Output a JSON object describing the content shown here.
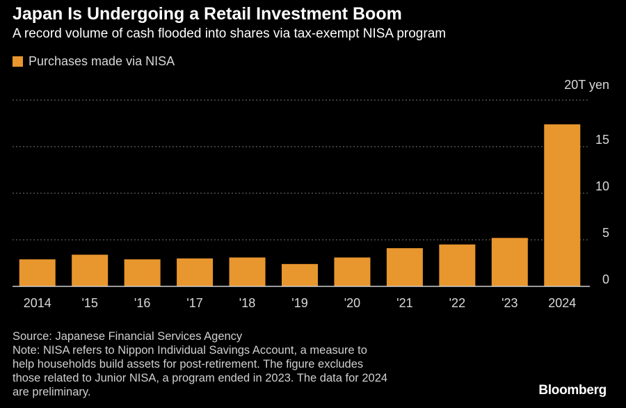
{
  "header": {
    "title": "Japan Is Undergoing a Retail Investment Boom",
    "subtitle": "A record volume of cash flooded into shares via tax-exempt NISA program"
  },
  "legend": {
    "label": "Purchases made via NISA"
  },
  "footer": {
    "source": "Source: Japanese Financial Services Agency",
    "note_lines": [
      "Note: NISA refers to Nippon Individual Savings Account, a measure to",
      "help households build assets for post-retirement. The figure excludes",
      "those related to Junior NISA, a program ended in 2023. The data for 2024",
      "are preliminary."
    ],
    "brand": "Bloomberg"
  },
  "colors": {
    "background": "#000000",
    "bar": "#e8962e",
    "grid": "#7a7a7a",
    "text": "#d9d9d9"
  },
  "chart_data": {
    "type": "bar",
    "title": "Japan Is Undergoing a Retail Investment Boom",
    "subtitle": "A record volume of cash flooded into shares via tax-exempt NISA program",
    "categories": [
      "2014",
      "'15",
      "'16",
      "'17",
      "'18",
      "'19",
      "'20",
      "'21",
      "'22",
      "'23",
      "2024"
    ],
    "series": [
      {
        "name": "Purchases made via NISA",
        "values": [
          2.9,
          3.4,
          2.9,
          3.0,
          3.1,
          2.4,
          3.1,
          4.1,
          4.5,
          5.2,
          17.4
        ]
      }
    ],
    "y_ticks": [
      0,
      5,
      10,
      15,
      20
    ],
    "y_tick_labels": [
      "0",
      "5",
      "10",
      "15",
      "20T yen"
    ],
    "ylim": [
      0,
      20
    ],
    "ylabel": "",
    "xlabel": "",
    "y_axis_side": "right",
    "grid": true,
    "legend_position": "top-left"
  }
}
